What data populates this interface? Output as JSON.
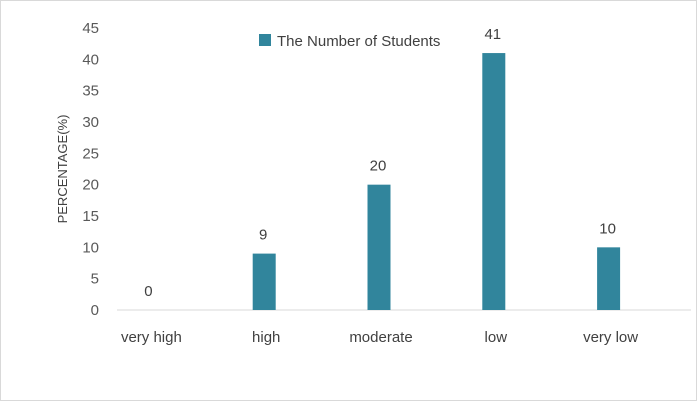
{
  "chart_data": {
    "type": "bar",
    "categories": [
      "very high",
      "high",
      "moderate",
      "low",
      "very low"
    ],
    "series": [
      {
        "name": "The Number of Students",
        "values": [
          0,
          9,
          20,
          41,
          10
        ],
        "color": "#31859c"
      }
    ],
    "data_labels": [
      "0",
      "9",
      "20",
      "41",
      "10"
    ],
    "xlabel": "",
    "ylabel": "PERCENTAGE(%)",
    "ylim": [
      0,
      45
    ],
    "yticks": [
      0,
      5,
      10,
      15,
      20,
      25,
      30,
      35,
      40,
      45
    ],
    "grid": false,
    "legend_position": "top-center"
  }
}
